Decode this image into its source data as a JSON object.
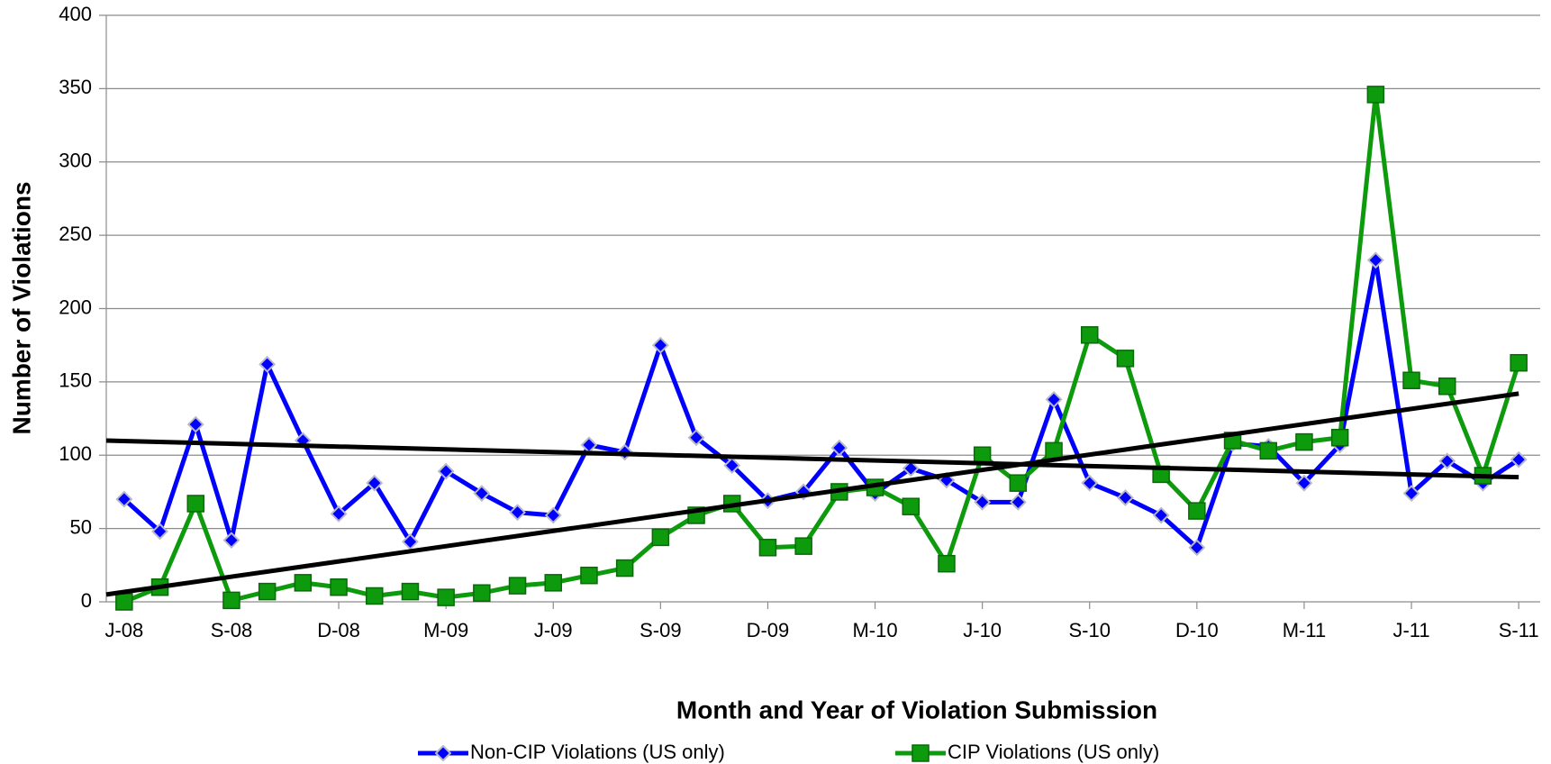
{
  "chart_data": {
    "type": "line",
    "x_axis_label": "Month and Year of Violation Submission",
    "y_axis_label": "Number of Violations",
    "categories": [
      "J-08",
      null,
      null,
      "S-08",
      null,
      null,
      "D-08",
      null,
      null,
      "M-09",
      null,
      null,
      "J-09",
      null,
      null,
      "S-09",
      null,
      null,
      "D-09",
      null,
      null,
      "M-10",
      null,
      null,
      "J-10",
      null,
      null,
      "S-10",
      null,
      null,
      "D-10",
      null,
      null,
      "M-11",
      null,
      null,
      "J-11",
      null,
      null,
      "S-11"
    ],
    "series": [
      {
        "name": "Non-CIP Violations (US only)",
        "color": "#0000ff",
        "marker": "diamond",
        "values": [
          70,
          48,
          121,
          42,
          162,
          110,
          60,
          81,
          41,
          89,
          74,
          61,
          59,
          107,
          102,
          175,
          112,
          93,
          69,
          75,
          105,
          74,
          91,
          83,
          68,
          68,
          138,
          81,
          71,
          59,
          37,
          108,
          106,
          81,
          107,
          233,
          74,
          96,
          81,
          97
        ]
      },
      {
        "name": "CIP Violations (US only)",
        "color": "#0d9a0d",
        "marker": "square",
        "values": [
          0,
          10,
          67,
          1,
          7,
          13,
          10,
          4,
          7,
          3,
          6,
          11,
          13,
          18,
          23,
          44,
          59,
          67,
          37,
          38,
          75,
          78,
          65,
          26,
          100,
          81,
          103,
          182,
          166,
          87,
          62,
          110,
          103,
          109,
          112,
          346,
          151,
          147,
          86,
          163
        ]
      }
    ],
    "trendlines": [
      {
        "color": "#000000",
        "start": 110,
        "end": 85
      },
      {
        "color": "#000000",
        "start": 5,
        "end": 142
      }
    ],
    "ylim": [
      0,
      400
    ],
    "yticks": [
      0,
      50,
      100,
      150,
      200,
      250,
      300,
      350,
      400
    ],
    "grid": true,
    "legend": "bottom"
  }
}
